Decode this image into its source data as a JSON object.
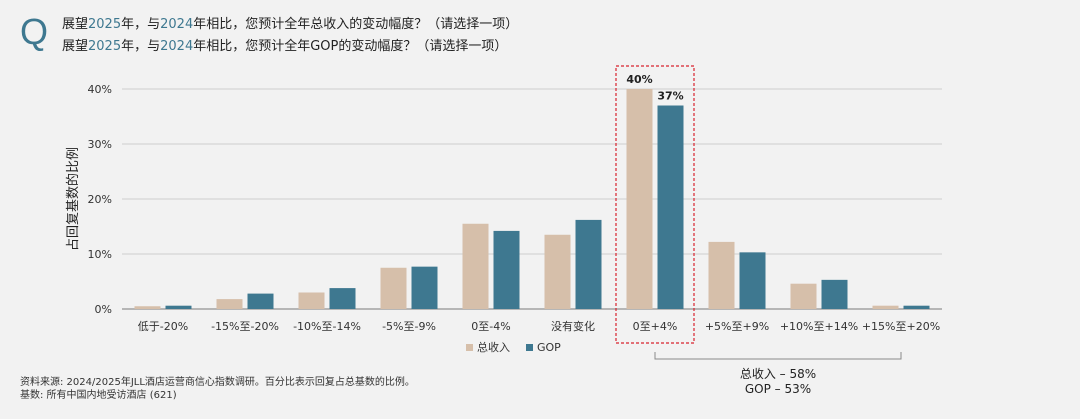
{
  "question": {
    "mark": "Q",
    "line1": {
      "p1": "展望",
      "y1": "2025",
      "p2": "年，与",
      "y2": "2024",
      "p3": "年相比，您预计全年总收入的变动幅度？（请选择一项）"
    },
    "line2": {
      "p1": "展望",
      "y1": "2025",
      "p2": "年，与",
      "y2": "2024",
      "p3": "年相比，您预计全年GOP的变动幅度？（请选择一项）"
    }
  },
  "chart_data": {
    "type": "bar",
    "categories": [
      "低于-20%",
      "-15%至-20%",
      "-10%至-14%",
      "-5%至-9%",
      "0至-4%",
      "没有变化",
      "0至+4%",
      "+5%至+9%",
      "+10%至+14%",
      "+15%至+20%"
    ],
    "series": [
      {
        "name": "总收入",
        "values": [
          0.5,
          1.8,
          3.0,
          7.5,
          15.5,
          13.5,
          40,
          12.2,
          4.6,
          0.6
        ],
        "color": "#d6bfaa"
      },
      {
        "name": "GOP",
        "values": [
          0.6,
          2.8,
          3.8,
          7.7,
          14.2,
          16.2,
          37,
          10.3,
          5.3,
          0.6
        ],
        "color": "#3e7890"
      }
    ],
    "ylabel": "占回复基数的比例",
    "ylim": [
      0,
      40
    ],
    "yticks": [
      "0%",
      "10%",
      "20%",
      "30%",
      "40%"
    ],
    "highlight": {
      "category": "0至+4%",
      "labels": [
        "40%",
        "37%"
      ],
      "border_color": "#d9232e"
    },
    "legend_placement": "bottom-center",
    "grid": true,
    "annotation": {
      "line1": "总收入 – 58%",
      "line2": "GOP – 53%"
    }
  },
  "footer": {
    "source": "资料来源: 2024/2025年JLL酒店运营商信心指数调研。百分比表示回复占总基数的比例。",
    "base": "基数: 所有中国内地受访酒店 (621)"
  }
}
